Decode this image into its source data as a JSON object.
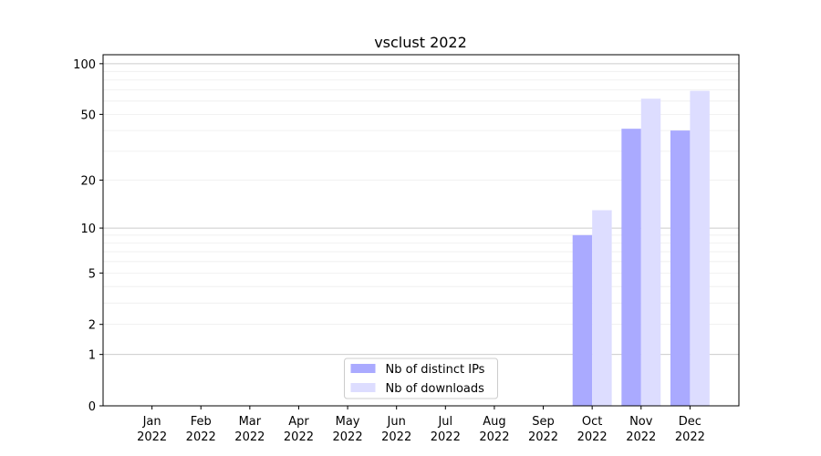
{
  "chart_data": {
    "type": "bar",
    "title": "vsclust 2022",
    "scale": "log1p",
    "categories": [
      "Jan\n2022",
      "Feb\n2022",
      "Mar\n2022",
      "Apr\n2022",
      "May\n2022",
      "Jun\n2022",
      "Jul\n2022",
      "Aug\n2022",
      "Sep\n2022",
      "Oct\n2022",
      "Nov\n2022",
      "Dec\n2022"
    ],
    "series": [
      {
        "name": "Nb of distinct IPs",
        "color": "#aaaaff",
        "values": [
          0,
          0,
          0,
          0,
          0,
          0,
          0,
          0,
          0,
          9,
          41,
          40
        ]
      },
      {
        "name": "Nb of downloads",
        "color": "#ddddff",
        "values": [
          0,
          0,
          0,
          0,
          0,
          0,
          0,
          0,
          0,
          13,
          62,
          69
        ]
      }
    ],
    "ylim": [
      0,
      113
    ],
    "yticks": [
      0,
      1,
      2,
      5,
      10,
      20,
      50,
      100
    ],
    "major_grid": [
      1,
      10,
      100
    ],
    "minor_grid": [
      2,
      3,
      4,
      5,
      6,
      7,
      8,
      9,
      20,
      30,
      40,
      50,
      60,
      70,
      80,
      90
    ],
    "legend": "lower center"
  }
}
